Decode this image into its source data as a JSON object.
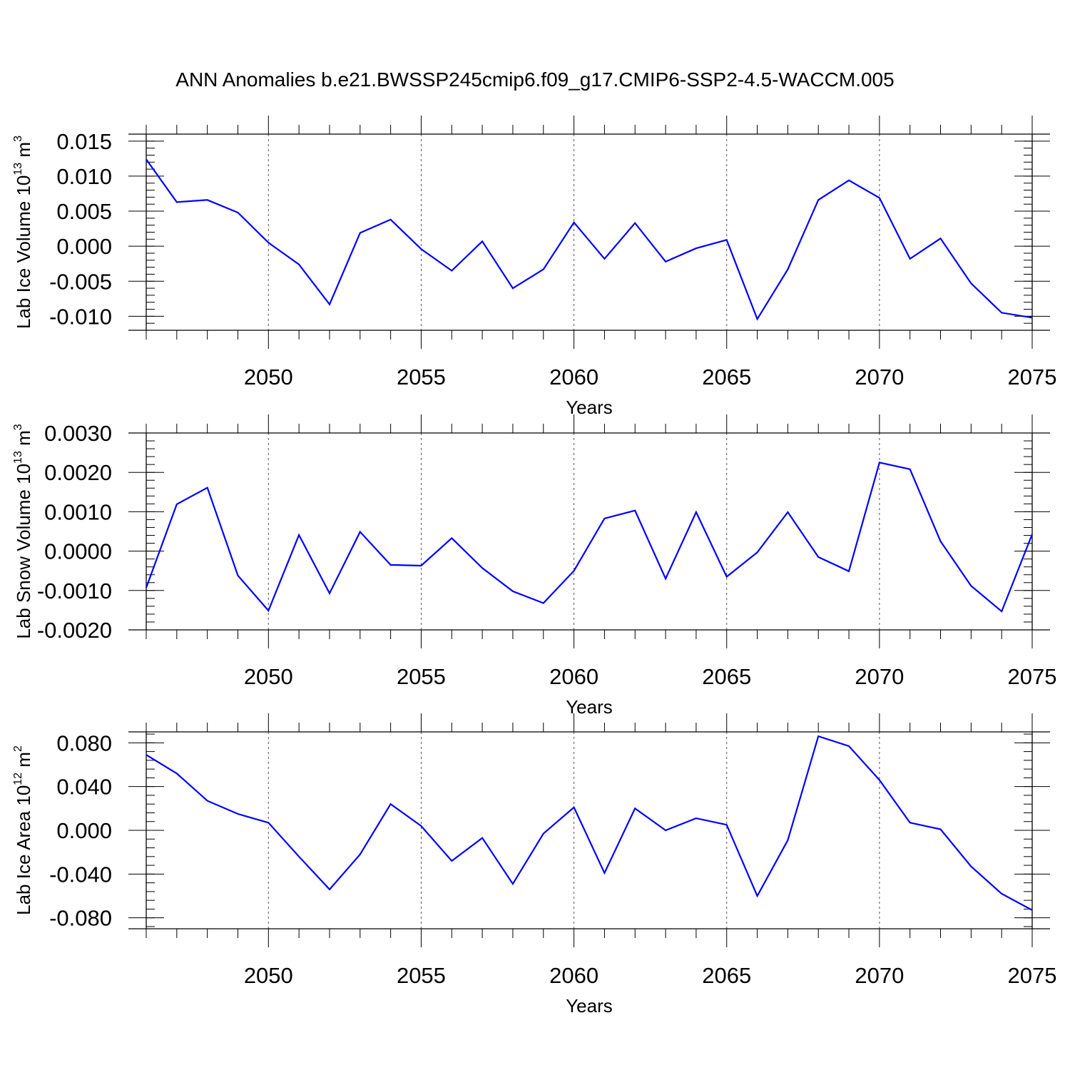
{
  "title": "ANN Anomalies b.e21.BWSSP245cmip6.f09_g17.CMIP6-SSP2-4.5-WACCM.005",
  "colors": {
    "series": "#0000ff",
    "axis": "#000000",
    "grid": "#555555"
  },
  "chart_data": [
    {
      "type": "line",
      "ylabel_base": "Lab Ice Volume 10",
      "ylabel_exp": "13",
      "ylabel_unit": "m",
      "ylabel_unit_exp": "3",
      "xlabel": "Years",
      "xlim": [
        2046,
        2075
      ],
      "ylim": [
        -0.012,
        0.016
      ],
      "xticks": [
        2050,
        2055,
        2060,
        2065,
        2070,
        2075
      ],
      "yticks": [
        0.015,
        0.01,
        0.005,
        0.0,
        -0.005,
        -0.01
      ],
      "ytick_labels": [
        "0.015",
        "0.010",
        "0.005",
        "0.000",
        "-0.005",
        "-0.010"
      ],
      "yminor_step": 0.001,
      "grid": "vertical dashed at major x ticks",
      "x": [
        2046,
        2047,
        2048,
        2049,
        2050,
        2051,
        2052,
        2053,
        2054,
        2055,
        2056,
        2057,
        2058,
        2059,
        2060,
        2061,
        2062,
        2063,
        2064,
        2065,
        2066,
        2067,
        2068,
        2069,
        2070,
        2071,
        2072,
        2073,
        2074,
        2075
      ],
      "values": [
        0.0124,
        0.0063,
        0.0066,
        0.0048,
        0.0005,
        -0.0026,
        -0.0083,
        0.0019,
        0.0038,
        -0.0004,
        -0.0035,
        0.0007,
        -0.006,
        -0.0033,
        0.0034,
        -0.0018,
        0.0033,
        -0.0022,
        -0.0003,
        0.0009,
        -0.0104,
        -0.0033,
        0.0066,
        0.0094,
        0.0069,
        -0.0018,
        0.0011,
        -0.0053,
        -0.0095,
        -0.0102
      ]
    },
    {
      "type": "line",
      "ylabel_base": "Lab Snow Volume 10",
      "ylabel_exp": "13",
      "ylabel_unit": "m",
      "ylabel_unit_exp": "3",
      "xlabel": "Years",
      "xlim": [
        2046,
        2075
      ],
      "ylim": [
        -0.002,
        0.003
      ],
      "xticks": [
        2050,
        2055,
        2060,
        2065,
        2070,
        2075
      ],
      "yticks": [
        0.003,
        0.002,
        0.001,
        0.0,
        -0.001,
        -0.002
      ],
      "ytick_labels": [
        "0.0030",
        "0.0020",
        "0.0010",
        "0.0000",
        "-0.0010",
        "-0.0020"
      ],
      "yminor_step": 0.0002,
      "grid": "vertical dashed at major x ticks",
      "x": [
        2046,
        2047,
        2048,
        2049,
        2050,
        2051,
        2052,
        2053,
        2054,
        2055,
        2056,
        2057,
        2058,
        2059,
        2060,
        2061,
        2062,
        2063,
        2064,
        2065,
        2066,
        2067,
        2068,
        2069,
        2070,
        2071,
        2072,
        2073,
        2074,
        2075
      ],
      "values": [
        -0.00093,
        0.00119,
        0.00161,
        -0.00062,
        -0.00151,
        0.00041,
        -0.00107,
        0.00049,
        -0.00035,
        -0.00037,
        0.00033,
        -0.00043,
        -0.00102,
        -0.00132,
        -0.0005,
        0.00083,
        0.00103,
        -0.0007,
        0.00099,
        -0.00065,
        -3e-05,
        0.00099,
        -0.00015,
        -0.00051,
        0.00225,
        0.00208,
        0.00025,
        -0.00088,
        -0.00153,
        0.00043
      ]
    },
    {
      "type": "line",
      "ylabel_base": "Lab Ice Area 10",
      "ylabel_exp": "12",
      "ylabel_unit": "m",
      "ylabel_unit_exp": "2",
      "xlabel": "Years",
      "xlim": [
        2046,
        2075
      ],
      "ylim": [
        -0.09,
        0.09
      ],
      "xticks": [
        2050,
        2055,
        2060,
        2065,
        2070,
        2075
      ],
      "yticks": [
        0.08,
        0.04,
        0.0,
        -0.04,
        -0.08
      ],
      "ytick_labels": [
        "0.080",
        "0.040",
        "0.000",
        "-0.040",
        "-0.080"
      ],
      "yminor_step": 0.008,
      "grid": "vertical dashed at major x ticks",
      "x": [
        2046,
        2047,
        2048,
        2049,
        2050,
        2051,
        2052,
        2053,
        2054,
        2055,
        2056,
        2057,
        2058,
        2059,
        2060,
        2061,
        2062,
        2063,
        2064,
        2065,
        2066,
        2067,
        2068,
        2069,
        2070,
        2071,
        2072,
        2073,
        2074,
        2075
      ],
      "values": [
        0.069,
        0.052,
        0.027,
        0.015,
        0.007,
        -0.024,
        -0.054,
        -0.022,
        0.024,
        0.004,
        -0.028,
        -0.007,
        -0.049,
        -0.003,
        0.021,
        -0.039,
        0.02,
        0.0,
        0.011,
        0.005,
        -0.06,
        -0.009,
        0.086,
        0.077,
        0.046,
        0.007,
        0.001,
        -0.033,
        -0.058,
        -0.073
      ]
    }
  ]
}
